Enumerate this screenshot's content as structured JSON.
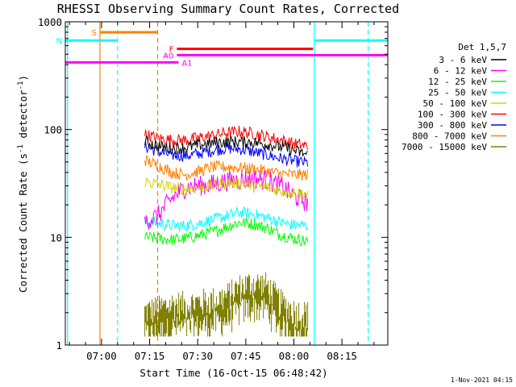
{
  "chart_data": {
    "type": "line",
    "title": "RHESSI Observing Summary Count Rates, Corrected",
    "xlabel": "Start Time (16-Oct-15 06:48:42)",
    "ylabel_main": "Corrected Count Rate (s",
    "ylabel_sup1": "-1",
    "ylabel_mid": " detector",
    "ylabel_sup2": "-1",
    "ylabel_end": ")",
    "y_scale": "log",
    "ylim": [
      1,
      1000
    ],
    "xlim_minutes": [
      408.7,
      509.3
    ],
    "x_ticks": [
      {
        "min": 420,
        "label": "07:00"
      },
      {
        "min": 435,
        "label": "07:15"
      },
      {
        "min": 450,
        "label": "07:30"
      },
      {
        "min": 465,
        "label": "07:45"
      },
      {
        "min": 480,
        "label": "08:00"
      },
      {
        "min": 495,
        "label": "08:15"
      }
    ],
    "y_ticks": [
      {
        "v": 1,
        "label": "1"
      },
      {
        "v": 10,
        "label": "10"
      },
      {
        "v": 100,
        "label": "100"
      },
      {
        "v": 1000,
        "label": "1000"
      }
    ],
    "legend_title": "Det 1,5,7",
    "legend_position": "right",
    "data_start_min": 433.5,
    "data_end_min": 484.2,
    "series": [
      {
        "name": "3 - 6 keV",
        "color": "#000000",
        "values": [
          78,
          70,
          67,
          68,
          72,
          75,
          77,
          77,
          76,
          73,
          69,
          64,
          58
        ]
      },
      {
        "name": "6 - 12 keV",
        "color": "#ff00ff",
        "values": [
          14,
          16,
          23,
          29,
          30,
          31,
          33,
          34,
          35,
          34,
          30,
          24,
          21
        ]
      },
      {
        "name": "12 - 25 keV",
        "color": "#00ff00",
        "values": [
          10,
          9.8,
          9.5,
          9.7,
          10.4,
          11.2,
          12.5,
          13.8,
          13.3,
          12.2,
          10.6,
          9.7,
          9.2
        ]
      },
      {
        "name": "25 - 50 keV",
        "color": "#00ffff",
        "values": [
          14,
          13.5,
          12.8,
          12.8,
          13.5,
          14.5,
          15.8,
          17,
          16.4,
          15.2,
          13.7,
          13,
          12.8
        ]
      },
      {
        "name": "50 - 100 keV",
        "color": "#d4d400",
        "values": [
          33,
          31,
          29,
          28,
          29,
          30,
          32,
          32,
          30,
          29,
          27,
          26,
          25
        ]
      },
      {
        "name": "100 - 300 keV",
        "color": "#ff0000",
        "values": [
          90,
          83,
          80,
          80,
          84,
          88,
          93,
          96,
          92,
          86,
          80,
          74,
          70
        ]
      },
      {
        "name": "300 - 800 keV",
        "color": "#0000ff",
        "values": [
          70,
          62,
          58,
          57,
          60,
          64,
          67,
          66,
          62,
          58,
          54,
          51,
          49
        ]
      },
      {
        "name": "800 - 7000 keV",
        "color": "#ff8000",
        "values": [
          52,
          46,
          40,
          38,
          41,
          45,
          45,
          44,
          43,
          41,
          39,
          38,
          38
        ]
      },
      {
        "name": "7000 - 15000 keV",
        "color": "#808000",
        "values": [
          1.9,
          2.0,
          2.2,
          2.2,
          2.3,
          2.4,
          2.6,
          3.2,
          3.5,
          3.3,
          2.3,
          1.9,
          1.8
        ]
      }
    ],
    "flags": [
      {
        "label": "S",
        "color": "#ff8000",
        "y": 800,
        "start": 419.5,
        "end": 437.5
      },
      {
        "label": "N",
        "color": "#00ffff",
        "y": 670,
        "start": 408.7,
        "end": 425.0
      },
      {
        "label": "F",
        "color": "#ff0000",
        "y": 560,
        "start": 443.5,
        "end": 486.0
      },
      {
        "label": "A0",
        "color": "#ff00ff",
        "y": 490,
        "start": 443.5,
        "end": 509.3
      },
      {
        "label": "A1",
        "color": "#ff00ff",
        "y": 420,
        "start": 408.7,
        "end": 444.0
      },
      {
        "label": "",
        "color": "#00ffff",
        "y": 670,
        "start": 486.4,
        "end": 509.3
      }
    ],
    "vlines": [
      {
        "min": 409.4,
        "color": "#00ffff",
        "dash": false
      },
      {
        "min": 419.5,
        "color": "#ff8000",
        "dash": false
      },
      {
        "min": 425.0,
        "color": "#00ffff",
        "dash": true
      },
      {
        "min": 437.5,
        "color": "#ff8000",
        "dash": true
      },
      {
        "min": 486.4,
        "color": "#00ffff",
        "dash": false
      },
      {
        "min": 503.2,
        "color": "#00ffff",
        "dash": true
      }
    ]
  },
  "footer": {
    "date_stamp": "1-Nov-2021 04:15"
  }
}
